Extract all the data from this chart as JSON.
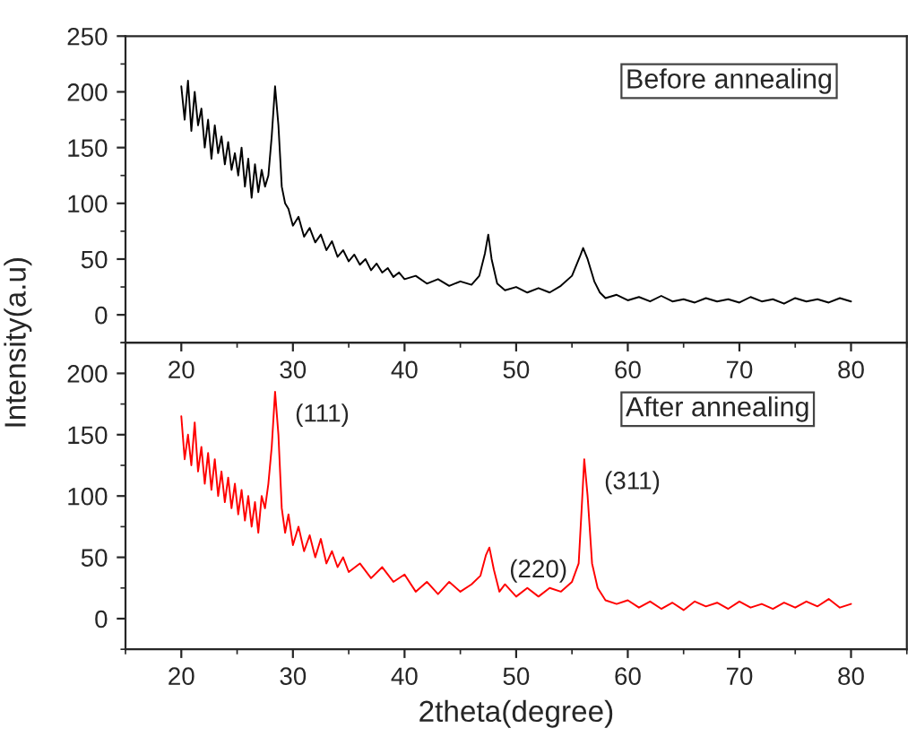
{
  "chart_data": [
    {
      "type": "line",
      "ylabel": "Intensity(a.u)",
      "xlim": [
        15,
        85
      ],
      "xticks": [
        20,
        30,
        40,
        50,
        60,
        70,
        80
      ],
      "ylim": [
        -25,
        250
      ],
      "yticks": [
        0,
        50,
        100,
        150,
        200,
        250
      ],
      "grid": false,
      "annotations": [
        "Before annealing"
      ],
      "series": [
        {
          "color": "#000000",
          "x": [
            20,
            20.3,
            20.6,
            20.9,
            21.2,
            21.5,
            21.8,
            22.1,
            22.4,
            22.7,
            23,
            23.3,
            23.6,
            23.9,
            24.2,
            24.5,
            24.8,
            25.1,
            25.4,
            25.7,
            26,
            26.3,
            26.6,
            26.9,
            27.2,
            27.5,
            27.8,
            28.1,
            28.4,
            28.7,
            29,
            29.3,
            29.6,
            30,
            30.5,
            31,
            31.5,
            32,
            32.5,
            33,
            33.5,
            34,
            34.5,
            35,
            35.5,
            36,
            36.5,
            37,
            37.5,
            38,
            38.5,
            39,
            39.5,
            40,
            41,
            42,
            43,
            44,
            45,
            46,
            46.7,
            47.2,
            47.5,
            47.8,
            48.3,
            49,
            50,
            51,
            52,
            53,
            54,
            55,
            55.7,
            56,
            56.4,
            57,
            57.5,
            58,
            59,
            60,
            61,
            62,
            63,
            64,
            65,
            66,
            67,
            68,
            69,
            70,
            71,
            72,
            73,
            74,
            75,
            76,
            77,
            78,
            79,
            80
          ],
          "values": [
            205,
            175,
            210,
            165,
            200,
            170,
            185,
            150,
            175,
            140,
            170,
            145,
            160,
            135,
            155,
            130,
            145,
            125,
            150,
            115,
            140,
            105,
            135,
            110,
            130,
            115,
            125,
            160,
            205,
            170,
            115,
            100,
            95,
            80,
            88,
            70,
            78,
            65,
            72,
            58,
            66,
            52,
            58,
            48,
            54,
            45,
            50,
            40,
            46,
            38,
            42,
            34,
            38,
            32,
            35,
            28,
            32,
            26,
            30,
            27,
            35,
            55,
            72,
            50,
            28,
            22,
            25,
            20,
            24,
            20,
            26,
            35,
            52,
            60,
            50,
            30,
            20,
            15,
            18,
            13,
            16,
            12,
            17,
            12,
            14,
            11,
            15,
            12,
            14,
            11,
            16,
            12,
            14,
            10,
            15,
            12,
            14,
            11,
            15,
            12
          ]
        }
      ]
    },
    {
      "type": "line",
      "xlabel": "2theta(degree)",
      "xlim": [
        15,
        85
      ],
      "xticks": [
        20,
        30,
        40,
        50,
        60,
        70,
        80
      ],
      "ylim": [
        -25,
        225
      ],
      "yticks": [
        0,
        50,
        100,
        150,
        200
      ],
      "grid": false,
      "annotations": [
        "After annealing",
        {
          "text": "(111)",
          "x": 28.4,
          "y": 185
        },
        {
          "text": "(220)",
          "x": 47.6,
          "y": 58
        },
        {
          "text": "(311)",
          "x": 56.1,
          "y": 130
        }
      ],
      "series": [
        {
          "color": "#ff0000",
          "x": [
            20,
            20.3,
            20.6,
            20.9,
            21.2,
            21.5,
            21.8,
            22.1,
            22.4,
            22.7,
            23,
            23.3,
            23.6,
            23.9,
            24.2,
            24.5,
            24.8,
            25.1,
            25.4,
            25.7,
            26,
            26.3,
            26.6,
            26.9,
            27.2,
            27.5,
            27.8,
            28.1,
            28.4,
            28.7,
            29,
            29.3,
            29.6,
            30,
            30.5,
            31,
            31.5,
            32,
            32.5,
            33,
            33.5,
            34,
            34.5,
            35,
            36,
            37,
            38,
            39,
            40,
            41,
            42,
            43,
            44,
            45,
            46,
            46.8,
            47.3,
            47.6,
            48,
            48.5,
            49,
            50,
            51,
            52,
            53,
            54,
            55,
            55.6,
            55.9,
            56.1,
            56.4,
            56.8,
            57.3,
            58,
            59,
            60,
            61,
            62,
            63,
            64,
            65,
            66,
            67,
            68,
            69,
            70,
            71,
            72,
            73,
            74,
            75,
            76,
            77,
            78,
            79,
            80
          ],
          "values": [
            165,
            130,
            150,
            125,
            160,
            120,
            140,
            110,
            135,
            105,
            130,
            100,
            120,
            95,
            115,
            90,
            110,
            85,
            105,
            80,
            100,
            75,
            95,
            70,
            100,
            90,
            110,
            140,
            185,
            150,
            90,
            70,
            85,
            60,
            75,
            55,
            68,
            50,
            65,
            45,
            55,
            42,
            50,
            38,
            45,
            33,
            42,
            30,
            36,
            22,
            30,
            20,
            30,
            22,
            28,
            35,
            52,
            58,
            40,
            22,
            28,
            18,
            25,
            18,
            25,
            22,
            30,
            45,
            95,
            130,
            100,
            45,
            25,
            15,
            12,
            15,
            9,
            14,
            8,
            13,
            7,
            14,
            10,
            13,
            8,
            14,
            9,
            12,
            8,
            13,
            9,
            14,
            10,
            16,
            9,
            12
          ]
        }
      ]
    }
  ]
}
